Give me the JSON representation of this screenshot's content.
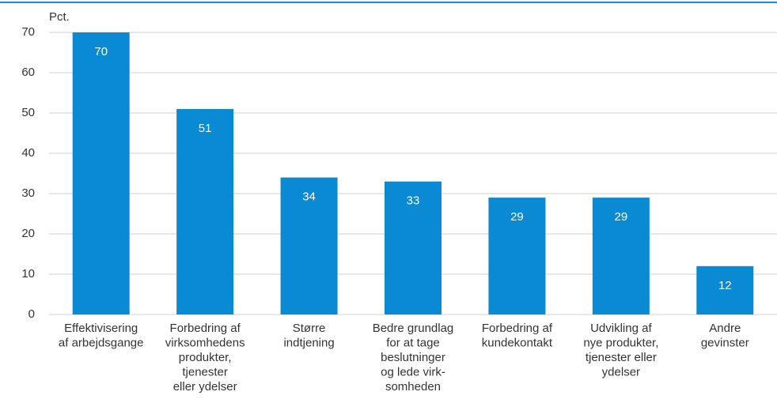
{
  "chart_data": {
    "type": "bar",
    "y_label": "Pct.",
    "categories": [
      [
        "Effektivisering",
        "af arbejdsgange"
      ],
      [
        "Forbedring af",
        "virksomhedens",
        "produkter,",
        "tjenester",
        "eller ydelser"
      ],
      [
        "Større",
        "indtjening"
      ],
      [
        "Bedre grundlag",
        "for at tage",
        "beslutninger",
        "og lede virk-",
        "somheden"
      ],
      [
        "Forbedring af",
        "kundekontakt"
      ],
      [
        "Udvikling af",
        "nye produkter,",
        "tjenester eller",
        "ydelser"
      ],
      [
        "Andre",
        "gevinster"
      ]
    ],
    "values": [
      70,
      51,
      34,
      33,
      29,
      29,
      12
    ],
    "color": "#0b8ad4",
    "ylim": [
      0,
      70
    ],
    "yticks": [
      0,
      10,
      20,
      30,
      40,
      50,
      60,
      70
    ],
    "grid": true
  }
}
